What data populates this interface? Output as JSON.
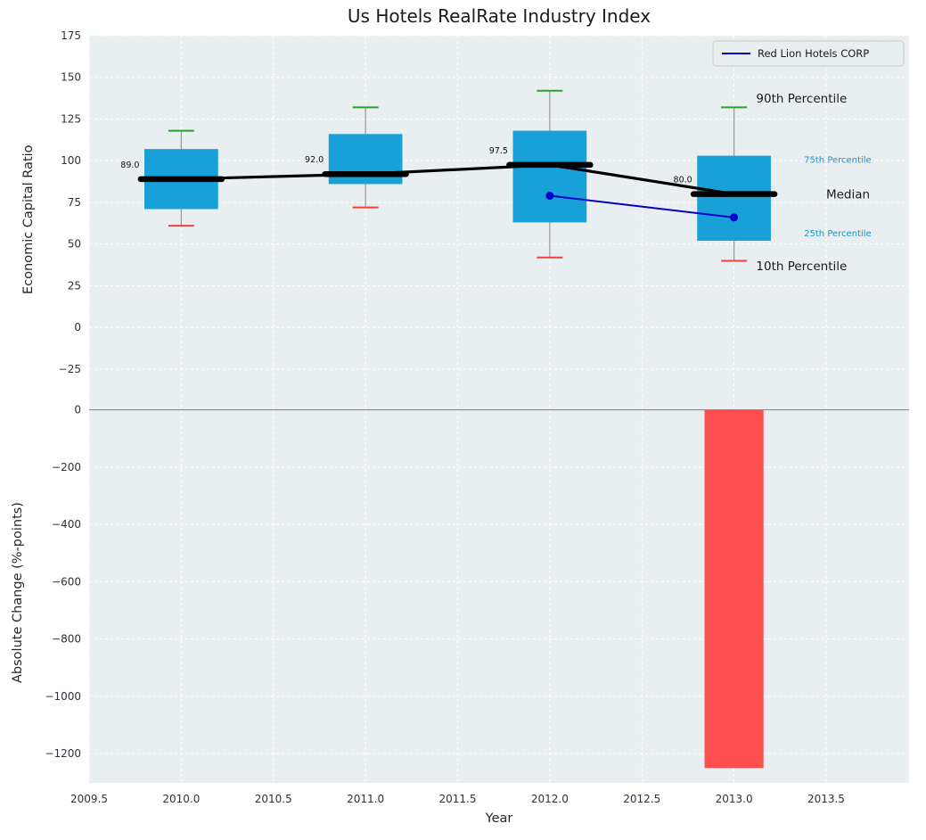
{
  "title": "Us Hotels RealRate Industry Index",
  "legend": {
    "label": "Red Lion Hotels CORP"
  },
  "colors": {
    "plot_bg": "#e9eef0",
    "grid": "#ffffff",
    "box_fill": "#18a1d9",
    "median": "#000000",
    "whisker": "#999999",
    "cap_top": "#2ca02c",
    "cap_bottom": "#f04338",
    "company_line": "#0000cc",
    "bar_fill": "#ff4040",
    "zero_line": "#8c8c8c",
    "tick_label": "#30303e",
    "text": "#1a1a1a",
    "percentile_label": "#1697c9",
    "legend_bg": "#e9eef0",
    "legend_border": "#cccccc"
  },
  "chart_data": {
    "type": "box",
    "x_axis": {
      "label": "Year",
      "lim": [
        2009.5,
        2013.95
      ],
      "ticks": [
        2009.5,
        2010.0,
        2010.5,
        2011.0,
        2011.5,
        2012.0,
        2012.5,
        2013.0,
        2013.5
      ]
    },
    "top_panel": {
      "type": "box+line",
      "ylabel": "Economic Capital Ratio",
      "ylim": [
        -48,
        175
      ],
      "yticks": [
        175,
        150,
        125,
        100,
        75,
        50,
        25,
        0,
        -25
      ],
      "boxes": [
        {
          "year": 2010,
          "p10": 61,
          "q1": 71,
          "median": 89.0,
          "q3": 107,
          "p90": 118,
          "label": "89.0"
        },
        {
          "year": 2011,
          "p10": 72,
          "q1": 86,
          "median": 92.0,
          "q3": 116,
          "p90": 132,
          "label": "92.0"
        },
        {
          "year": 2012,
          "p10": 42,
          "q1": 63,
          "median": 97.5,
          "q3": 118,
          "p90": 142,
          "label": "97.5"
        },
        {
          "year": 2013,
          "p10": 40,
          "q1": 52,
          "median": 80.0,
          "q3": 103,
          "p90": 132,
          "label": "80.0"
        }
      ],
      "company_series": {
        "name": "Red Lion Hotels CORP",
        "points": [
          {
            "x": 2012,
            "y": 79
          },
          {
            "x": 2013,
            "y": 66
          }
        ]
      },
      "annotations": [
        {
          "text": "90th Percentile",
          "x": 2013.12,
          "y": 137.0,
          "kind": "major"
        },
        {
          "text": "75th Percentile",
          "x": 2013.38,
          "y": 100.0,
          "kind": "minor"
        },
        {
          "text": "Median",
          "x": 2013.5,
          "y": 79.5,
          "kind": "major"
        },
        {
          "text": "25th Percentile",
          "x": 2013.38,
          "y": 56.0,
          "kind": "minor"
        },
        {
          "text": "10th Percentile",
          "x": 2013.12,
          "y": 36.5,
          "kind": "major"
        }
      ]
    },
    "bottom_panel": {
      "type": "bar",
      "ylabel": "Absolute Change (%-points)",
      "ylim": [
        -1302,
        8
      ],
      "yticks": [
        0,
        -200,
        -400,
        -600,
        -800,
        -1000,
        -1200
      ],
      "bars": [
        {
          "year": 2013,
          "value": -1250
        }
      ]
    }
  }
}
